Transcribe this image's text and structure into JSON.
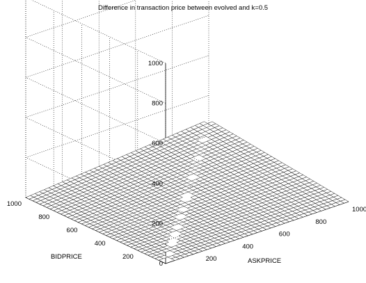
{
  "chart_data": {
    "type": "surface3d",
    "title": "Difference in transaction price between evolved and k=0.5",
    "xlabel": "ASKPRICE",
    "ylabel": "BIDPRICE",
    "zlabel": "",
    "x_range": [
      0,
      1000
    ],
    "y_range": [
      0,
      1000
    ],
    "zlim": [
      0,
      1000
    ],
    "x_ticks": [
      "200",
      "400",
      "600",
      "800",
      "1000"
    ],
    "y_ticks": [
      "200",
      "400",
      "600",
      "800",
      "1000"
    ],
    "z_ticks": [
      "0",
      "200",
      "400",
      "600",
      "800",
      "1000"
    ],
    "grid": true,
    "surface": {
      "description_values": "near-zero difference everywhere with a small rise toward the far corner; gap along the diagonal where ASKPRICE = BIDPRICE",
      "z_at_origin": 0,
      "z_at_far_corner": 80,
      "gap_line": "x = y"
    },
    "colors": {
      "mesh": "#000000",
      "face": "#ffffff"
    }
  }
}
